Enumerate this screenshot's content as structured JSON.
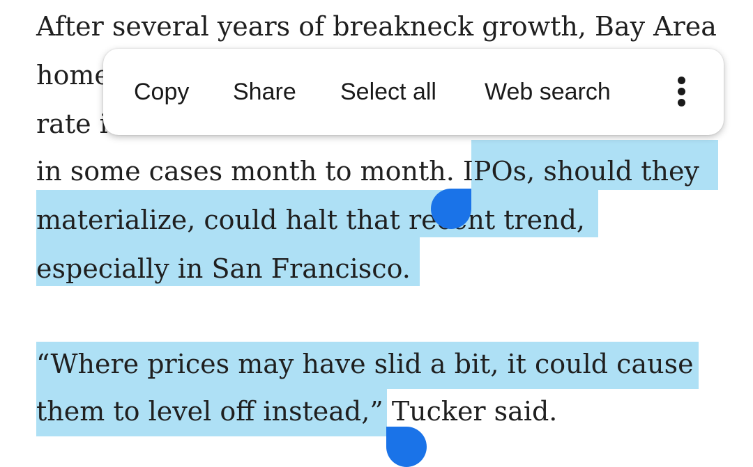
{
  "article": {
    "line1": "After several years of breakneck growth, Bay Area",
    "line2": "home",
    "line3": "rate i",
    "line4_plain": "in some cases month to month. ",
    "line4_selected": "IPOs, should they",
    "line5": "materialize, could halt that recent trend,",
    "line6": "especially in San Francisco.",
    "line7": "“Where prices may have slid a bit, it could cause",
    "line8_selected": "them to level off instead,”",
    "line8_plain": " Tucker said."
  },
  "selection_toolbar": {
    "copy_label": "Copy",
    "share_label": "Share",
    "select_all_label": "Select all",
    "web_search_label": "Web search",
    "more_icon": "more-vert-icon"
  },
  "colors": {
    "selection_highlight": "#aee0f5",
    "selection_handle": "#1a73e8",
    "text": "#1f1f1f"
  }
}
